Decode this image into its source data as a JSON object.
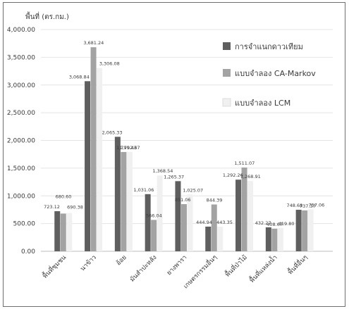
{
  "chart_data": {
    "type": "bar",
    "ylabel": "พื้นที่ (ตร.กม.)",
    "ylim": [
      0,
      4000
    ],
    "yticks": [
      "0.00",
      "500.00",
      "1,000.00",
      "1,500.00",
      "2,000.00",
      "2,500.00",
      "3,000.00",
      "3,500.00",
      "4,000.00"
    ],
    "ytick_values": [
      0,
      500,
      1000,
      1500,
      2000,
      2500,
      3000,
      3500,
      4000
    ],
    "grid": true,
    "legend_position": "right",
    "categories": [
      "พื้นที่ชุมชน",
      "นาข้าว",
      "อ้อย",
      "มันสำปะหลัง",
      "ยางพารา",
      "เกษตรกรรมอื่นๆ",
      "พื้นที่ป่าไม้",
      "พื้นที่แหล่งน้ำ",
      "พื้นที่อื่นๆ"
    ],
    "series": [
      {
        "name": "การจำแนกดาวเทียม",
        "color": "#5f5f5f",
        "values": [
          723.12,
          3068.84,
          2065.33,
          1031.06,
          1265.37,
          444.94,
          1292.26,
          432.27,
          748.68
        ],
        "labels": [
          "723.12",
          "3,068.84",
          "2,065.33",
          "1,031.06",
          "1,265.37",
          "444.94",
          "1,292.26",
          "432.27",
          "748.68"
        ]
      },
      {
        "name": "แบบจำลอง CA-Markov",
        "color": "#a3a3a3",
        "values": [
          680.6,
          3681.24,
          1791.43,
          566.04,
          851.06,
          844.39,
          1511.07,
          408.67,
          737.37
        ],
        "labels": [
          "680.60",
          "3,681.24",
          "1,791.43",
          "566.04",
          "851.06",
          "844.39",
          "1,511.07",
          "408.67",
          "737.37"
        ]
      },
      {
        "name": "แบบจำลอง LCM",
        "color": "#f0f0f0",
        "values": [
          690.38,
          3306.08,
          1792.67,
          1368.54,
          1025.07,
          443.35,
          1268.91,
          419.8,
          757.06
        ],
        "labels": [
          "690.38",
          "3,306.08",
          "1,792.67",
          "1,368.54",
          "1,025.07",
          "443.35",
          "1,268.91",
          "419.80",
          "757.06"
        ]
      }
    ]
  }
}
